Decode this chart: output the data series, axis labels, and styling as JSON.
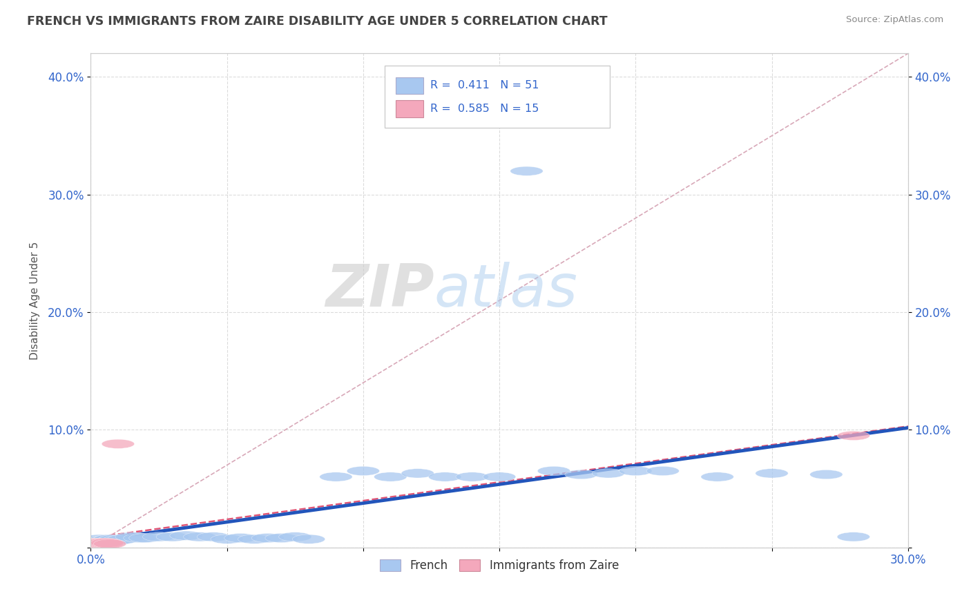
{
  "title": "FRENCH VS IMMIGRANTS FROM ZAIRE DISABILITY AGE UNDER 5 CORRELATION CHART",
  "source": "Source: ZipAtlas.com",
  "ylabel": "Disability Age Under 5",
  "xlim": [
    0.0,
    0.3
  ],
  "ylim": [
    0.0,
    0.42
  ],
  "xticks": [
    0.0,
    0.05,
    0.1,
    0.15,
    0.2,
    0.25,
    0.3
  ],
  "xticklabels": [
    "0.0%",
    "",
    "",
    "",
    "",
    "",
    "30.0%"
  ],
  "yticks": [
    0.0,
    0.1,
    0.2,
    0.3,
    0.4
  ],
  "yticklabels": [
    "",
    "10.0%",
    "20.0%",
    "30.0%",
    "40.0%"
  ],
  "french_color": "#a8c8f0",
  "zaire_color": "#f4a8bc",
  "french_line_color": "#2255bb",
  "zaire_line_color": "#e05575",
  "ref_line_color": "#d8a8b8",
  "title_color": "#404040",
  "source_color": "#909090",
  "legend_label1": "French",
  "legend_label2": "Immigrants from Zaire",
  "watermark_zip": "ZIP",
  "watermark_atlas": "atlas",
  "french_x": [
    0.001,
    0.001,
    0.002,
    0.002,
    0.003,
    0.003,
    0.003,
    0.004,
    0.004,
    0.005,
    0.005,
    0.005,
    0.006,
    0.006,
    0.007,
    0.008,
    0.009,
    0.01,
    0.012,
    0.015,
    0.018,
    0.02,
    0.025,
    0.03,
    0.035,
    0.04,
    0.045,
    0.05,
    0.055,
    0.06,
    0.065,
    0.07,
    0.075,
    0.08,
    0.09,
    0.1,
    0.11,
    0.12,
    0.13,
    0.14,
    0.15,
    0.16,
    0.17,
    0.18,
    0.19,
    0.2,
    0.21,
    0.23,
    0.25,
    0.27,
    0.28
  ],
  "french_y": [
    0.004,
    0.006,
    0.003,
    0.005,
    0.004,
    0.005,
    0.007,
    0.004,
    0.006,
    0.003,
    0.005,
    0.006,
    0.004,
    0.006,
    0.007,
    0.006,
    0.007,
    0.006,
    0.007,
    0.009,
    0.008,
    0.008,
    0.009,
    0.009,
    0.01,
    0.009,
    0.009,
    0.007,
    0.008,
    0.007,
    0.008,
    0.008,
    0.009,
    0.007,
    0.06,
    0.065,
    0.06,
    0.063,
    0.06,
    0.06,
    0.06,
    0.32,
    0.065,
    0.062,
    0.063,
    0.065,
    0.065,
    0.06,
    0.063,
    0.062,
    0.009
  ],
  "zaire_x": [
    0.001,
    0.001,
    0.002,
    0.002,
    0.003,
    0.003,
    0.004,
    0.004,
    0.005,
    0.005,
    0.006,
    0.006,
    0.007,
    0.01,
    0.28
  ],
  "zaire_y": [
    0.003,
    0.004,
    0.003,
    0.004,
    0.003,
    0.004,
    0.003,
    0.004,
    0.003,
    0.004,
    0.003,
    0.004,
    0.003,
    0.088,
    0.095
  ]
}
